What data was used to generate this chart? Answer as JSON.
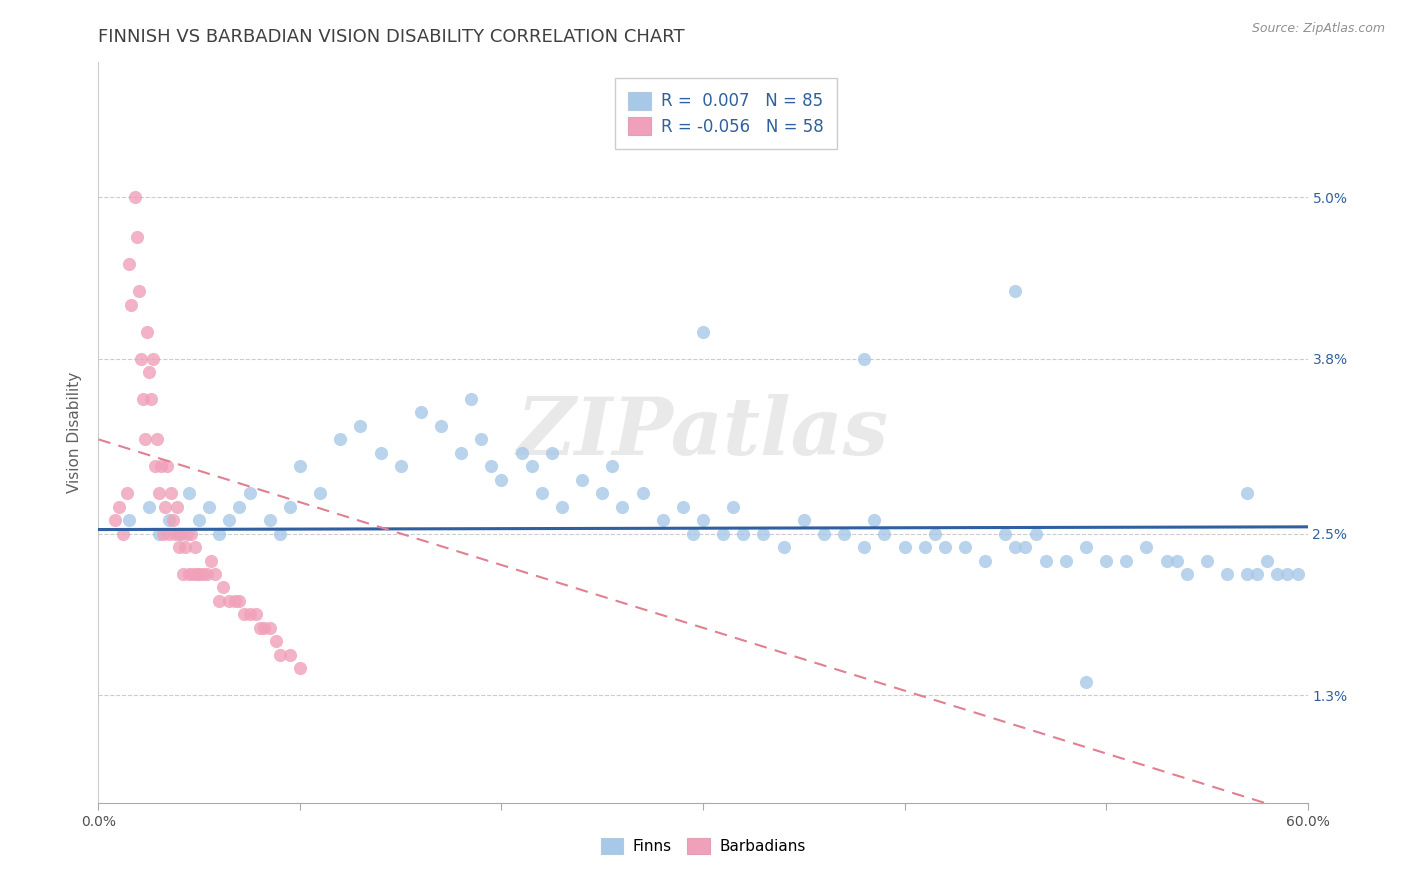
{
  "title": "FINNISH VS BARBADIAN VISION DISABILITY CORRELATION CHART",
  "source": "Source: ZipAtlas.com",
  "ylabel": "Vision Disability",
  "watermark": "ZIPatlas",
  "legend_labels": [
    "Finns",
    "Barbadians"
  ],
  "r_finns": 0.007,
  "n_finns": 85,
  "r_barbadians": -0.056,
  "n_barbadians": 58,
  "finns_color": "#a8c8e8",
  "barbadians_color": "#f0a0b8",
  "finns_line_color": "#3060a0",
  "barbadians_line_color": "#e08090",
  "xlim": [
    0.0,
    0.6
  ],
  "ylim": [
    0.005,
    0.06
  ],
  "yticks": [
    0.013,
    0.025,
    0.038,
    0.05
  ],
  "ytick_labels": [
    "1.3%",
    "2.5%",
    "3.8%",
    "5.0%"
  ],
  "xticks": [
    0.0,
    0.1,
    0.2,
    0.3,
    0.4,
    0.5,
    0.6
  ],
  "xtick_labels": [
    "0.0%",
    "",
    "",
    "",
    "",
    "",
    "60.0%"
  ],
  "title_color": "#404040",
  "title_fontsize": 13,
  "axis_label_fontsize": 11,
  "tick_fontsize": 10,
  "finns_x": [
    0.015,
    0.025,
    0.03,
    0.035,
    0.04,
    0.045,
    0.05,
    0.055,
    0.06,
    0.065,
    0.07,
    0.075,
    0.085,
    0.09,
    0.095,
    0.1,
    0.11,
    0.12,
    0.13,
    0.14,
    0.15,
    0.16,
    0.17,
    0.18,
    0.185,
    0.19,
    0.195,
    0.2,
    0.21,
    0.215,
    0.22,
    0.225,
    0.23,
    0.24,
    0.25,
    0.255,
    0.26,
    0.27,
    0.28,
    0.29,
    0.295,
    0.3,
    0.31,
    0.315,
    0.32,
    0.33,
    0.34,
    0.35,
    0.36,
    0.37,
    0.38,
    0.385,
    0.39,
    0.4,
    0.41,
    0.415,
    0.42,
    0.43,
    0.44,
    0.45,
    0.455,
    0.46,
    0.465,
    0.47,
    0.48,
    0.49,
    0.5,
    0.51,
    0.52,
    0.53,
    0.535,
    0.54,
    0.55,
    0.56,
    0.57,
    0.575,
    0.58,
    0.585,
    0.59,
    0.595,
    0.3,
    0.455,
    0.38,
    0.57,
    0.49
  ],
  "finns_y": [
    0.026,
    0.027,
    0.025,
    0.026,
    0.025,
    0.028,
    0.026,
    0.027,
    0.025,
    0.026,
    0.027,
    0.028,
    0.026,
    0.025,
    0.027,
    0.03,
    0.028,
    0.032,
    0.033,
    0.031,
    0.03,
    0.034,
    0.033,
    0.031,
    0.035,
    0.032,
    0.03,
    0.029,
    0.031,
    0.03,
    0.028,
    0.031,
    0.027,
    0.029,
    0.028,
    0.03,
    0.027,
    0.028,
    0.026,
    0.027,
    0.025,
    0.026,
    0.025,
    0.027,
    0.025,
    0.025,
    0.024,
    0.026,
    0.025,
    0.025,
    0.024,
    0.026,
    0.025,
    0.024,
    0.024,
    0.025,
    0.024,
    0.024,
    0.023,
    0.025,
    0.024,
    0.024,
    0.025,
    0.023,
    0.023,
    0.024,
    0.023,
    0.023,
    0.024,
    0.023,
    0.023,
    0.022,
    0.023,
    0.022,
    0.022,
    0.022,
    0.023,
    0.022,
    0.022,
    0.022,
    0.04,
    0.043,
    0.038,
    0.028,
    0.014
  ],
  "barbadians_x": [
    0.008,
    0.01,
    0.012,
    0.014,
    0.015,
    0.016,
    0.018,
    0.019,
    0.02,
    0.021,
    0.022,
    0.023,
    0.024,
    0.025,
    0.026,
    0.027,
    0.028,
    0.029,
    0.03,
    0.031,
    0.032,
    0.033,
    0.034,
    0.035,
    0.036,
    0.037,
    0.038,
    0.039,
    0.04,
    0.041,
    0.042,
    0.043,
    0.044,
    0.045,
    0.046,
    0.047,
    0.048,
    0.049,
    0.05,
    0.052,
    0.054,
    0.056,
    0.058,
    0.06,
    0.062,
    0.065,
    0.068,
    0.07,
    0.072,
    0.075,
    0.078,
    0.08,
    0.082,
    0.085,
    0.088,
    0.09,
    0.095,
    0.1
  ],
  "barbadians_y": [
    0.026,
    0.027,
    0.025,
    0.028,
    0.045,
    0.042,
    0.05,
    0.047,
    0.043,
    0.038,
    0.035,
    0.032,
    0.04,
    0.037,
    0.035,
    0.038,
    0.03,
    0.032,
    0.028,
    0.03,
    0.025,
    0.027,
    0.03,
    0.025,
    0.028,
    0.026,
    0.025,
    0.027,
    0.024,
    0.025,
    0.022,
    0.024,
    0.025,
    0.022,
    0.025,
    0.022,
    0.024,
    0.022,
    0.022,
    0.022,
    0.022,
    0.023,
    0.022,
    0.02,
    0.021,
    0.02,
    0.02,
    0.02,
    0.019,
    0.019,
    0.019,
    0.018,
    0.018,
    0.018,
    0.017,
    0.016,
    0.016,
    0.015
  ],
  "finns_line_y_start": 0.0253,
  "finns_line_y_end": 0.0255,
  "barb_line_x_start": 0.0,
  "barb_line_x_end": 0.6,
  "barb_line_y_start": 0.032,
  "barb_line_y_end": 0.004
}
